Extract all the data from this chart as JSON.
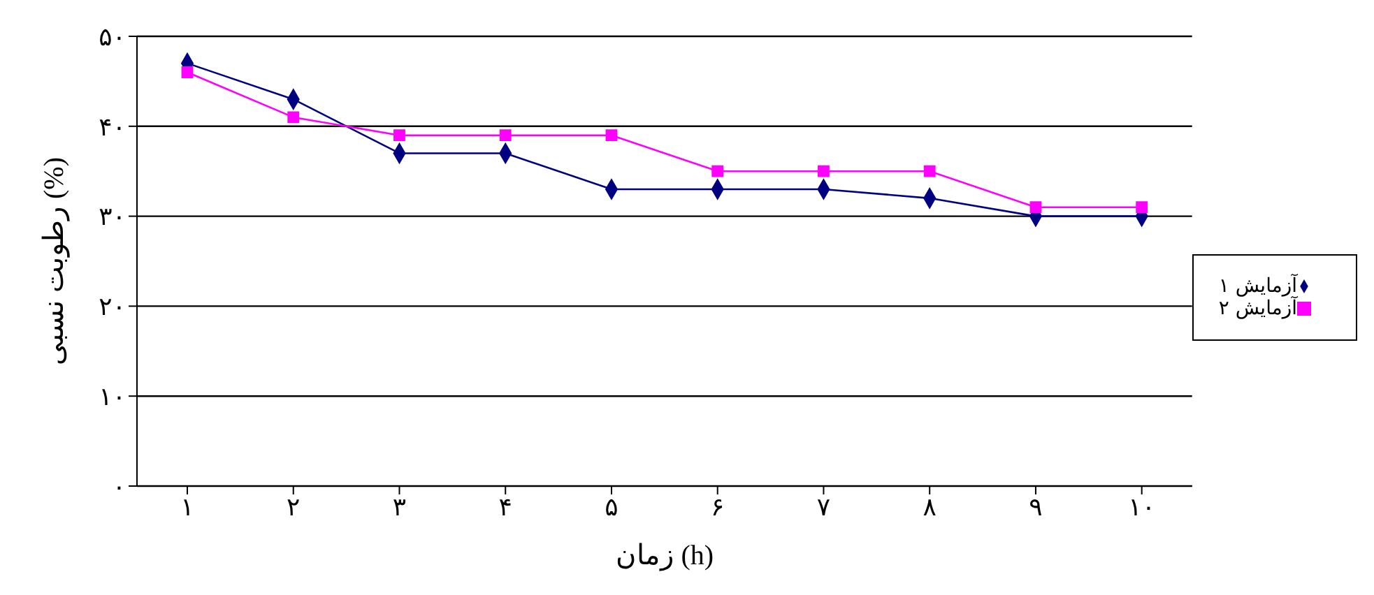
{
  "chart_data": {
    "type": "line",
    "xlabel": "زمان (h)",
    "ylabel": "رطوبت نسبی (%)",
    "categories": [
      "۱",
      "۲",
      "۳",
      "۴",
      "۵",
      "۶",
      "۷",
      "۸",
      "۹",
      "۱۰"
    ],
    "series": [
      {
        "name": "آزمایش ۱",
        "color": "#000080",
        "marker": "diamond",
        "values": [
          47,
          43,
          37,
          37,
          33,
          33,
          33,
          32,
          30,
          30
        ]
      },
      {
        "name": "آزمایش ۲",
        "color": "#ff00ff",
        "marker": "square",
        "values": [
          46,
          41,
          39,
          39,
          39,
          35,
          35,
          35,
          31,
          31
        ]
      }
    ],
    "ylim": [
      0,
      50
    ],
    "yticks": [
      {
        "value": 0,
        "label": "۰"
      },
      {
        "value": 10,
        "label": "۱۰"
      },
      {
        "value": 20,
        "label": "۲۰"
      },
      {
        "value": 30,
        "label": "۳۰"
      },
      {
        "value": 40,
        "label": "۴۰"
      },
      {
        "value": 50,
        "label": "۵۰"
      }
    ],
    "grid": "y",
    "legend": "right",
    "line_style": "solid"
  }
}
